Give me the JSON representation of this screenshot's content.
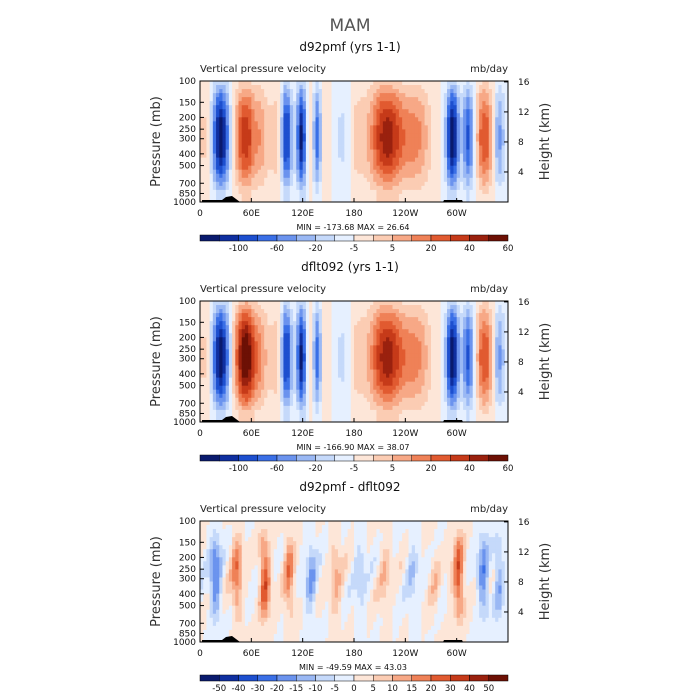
{
  "main_title": "MAM",
  "chart_data": [
    {
      "type": "heatmap",
      "title": "d92pmf (yrs 1-1)",
      "left_label": "Vertical pressure velocity",
      "units": "mb/day",
      "ylabel": "Pressure (mb)",
      "ylabel_right": "Height (km)",
      "x_ticks": [
        "0",
        "60E",
        "120E",
        "180",
        "120W",
        "60W"
      ],
      "y_ticks": [
        "100",
        "150",
        "200",
        "250",
        "300",
        "400",
        "500",
        "700",
        "850",
        "1000"
      ],
      "y_ticks_right": [
        "16",
        "12",
        "8",
        "4"
      ],
      "min_max": "MIN = -173.68   MAX =  26.64",
      "colorbar_labels": [
        "-100",
        "-60",
        "-20",
        "-5",
        "5",
        "20",
        "40",
        "60"
      ],
      "colors": [
        "#0a1a6e",
        "#0f2fa0",
        "#1d4fcf",
        "#3a6fe6",
        "#6b93ee",
        "#9ab8f4",
        "#c5d9fa",
        "#e6f0ff",
        "#fde6d8",
        "#fbccb3",
        "#f7a886",
        "#ef8157",
        "#e15a30",
        "#c63a19",
        "#9a210e",
        "#6d1005"
      ],
      "model": "case_a"
    },
    {
      "type": "heatmap",
      "title": "dflt092 (yrs 1-1)",
      "left_label": "Vertical pressure velocity",
      "units": "mb/day",
      "ylabel": "Pressure (mb)",
      "ylabel_right": "Height (km)",
      "x_ticks": [
        "0",
        "60E",
        "120E",
        "180",
        "120W",
        "60W"
      ],
      "y_ticks": [
        "100",
        "150",
        "200",
        "250",
        "300",
        "400",
        "500",
        "700",
        "850",
        "1000"
      ],
      "y_ticks_right": [
        "16",
        "12",
        "8",
        "4"
      ],
      "min_max": "MIN = -166.90   MAX =  38.07",
      "colorbar_labels": [
        "-100",
        "-60",
        "-20",
        "-5",
        "5",
        "20",
        "40",
        "60"
      ],
      "colors": [
        "#0a1a6e",
        "#0f2fa0",
        "#1d4fcf",
        "#3a6fe6",
        "#6b93ee",
        "#9ab8f4",
        "#c5d9fa",
        "#e6f0ff",
        "#fde6d8",
        "#fbccb3",
        "#f7a886",
        "#ef8157",
        "#e15a30",
        "#c63a19",
        "#9a210e",
        "#6d1005"
      ],
      "model": "case_b"
    },
    {
      "type": "heatmap",
      "title": "d92pmf - dflt092",
      "left_label": "Vertical pressure velocity",
      "units": "mb/day",
      "ylabel": "Pressure (mb)",
      "ylabel_right": "Height (km)",
      "x_ticks": [
        "0",
        "60E",
        "120E",
        "180",
        "120W",
        "60W"
      ],
      "y_ticks": [
        "100",
        "150",
        "200",
        "250",
        "300",
        "400",
        "500",
        "700",
        "850",
        "1000"
      ],
      "y_ticks_right": [
        "16",
        "12",
        "8",
        "4"
      ],
      "min_max": "MIN = -49.59   MAX =  43.03",
      "colorbar_labels": [
        "-50",
        "-40",
        "-30",
        "-20",
        "-15",
        "-10",
        "-5",
        "0",
        "5",
        "10",
        "15",
        "20",
        "30",
        "40",
        "50"
      ],
      "colors": [
        "#0a1a6e",
        "#0f2fa0",
        "#1d4fcf",
        "#3a6fe6",
        "#6b93ee",
        "#9ab8f4",
        "#c5d9fa",
        "#e6f0ff",
        "#fde6d8",
        "#fbccb3",
        "#f7a886",
        "#ef8157",
        "#e15a30",
        "#c63a19",
        "#9a210e",
        "#6d1005"
      ],
      "model": "diff"
    }
  ]
}
